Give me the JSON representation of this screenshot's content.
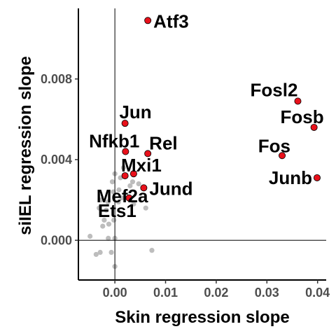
{
  "chart_data": {
    "type": "scatter",
    "xlabel": "Skin regression slope",
    "ylabel": "siIEL regression slope",
    "xlim": [
      -0.0072,
      0.0417
    ],
    "ylim": [
      -0.00197,
      0.0115
    ],
    "xticks": [
      0.0,
      0.01,
      0.02,
      0.03,
      0.04
    ],
    "xtick_labels": [
      "0.00",
      "0.01",
      "0.02",
      "0.03",
      "0.04"
    ],
    "yticks": [
      0.0,
      0.004,
      0.008
    ],
    "ytick_labels": [
      "0.000",
      "0.004",
      "0.008"
    ],
    "reference_lines": {
      "x": 0.0,
      "y": 0.0
    },
    "grid": false,
    "colors": {
      "highlight_fill": "#e8111b",
      "highlight_stroke": "#000000",
      "background_points": "#bdbdbd",
      "axis": "#000000"
    },
    "highlighted_points": [
      {
        "label": "Atf3",
        "x": 0.0065,
        "y": 0.0109
      },
      {
        "label": "Fosl2",
        "x": 0.0361,
        "y": 0.0069
      },
      {
        "label": "Jun",
        "x": 0.002,
        "y": 0.0058
      },
      {
        "label": "Fosb",
        "x": 0.0393,
        "y": 0.0056
      },
      {
        "label": "Nfkb1",
        "x": 0.0021,
        "y": 0.0044
      },
      {
        "label": "Rel",
        "x": 0.0065,
        "y": 0.0043
      },
      {
        "label": "Fos",
        "x": 0.033,
        "y": 0.0042
      },
      {
        "label": "Mxi1",
        "x": 0.0037,
        "y": 0.0033
      },
      {
        "label": "Mef2a",
        "x": 0.002,
        "y": 0.0032
      },
      {
        "label": "Junb",
        "x": 0.0399,
        "y": 0.0031
      },
      {
        "label": "Jund",
        "x": 0.0057,
        "y": 0.0026
      },
      {
        "label": "Ets1",
        "x": 0.0028,
        "y": 0.0021
      }
    ],
    "background_points": [
      {
        "x": 0.0,
        "y": 0.0033
      },
      {
        "x": -0.0005,
        "y": 0.0029
      },
      {
        "x": 0.0011,
        "y": 0.0031
      },
      {
        "x": 0.0017,
        "y": 0.0036
      },
      {
        "x": -0.0003,
        "y": 0.0024
      },
      {
        "x": 0.0008,
        "y": 0.0025
      },
      {
        "x": 0.0035,
        "y": 0.0029
      },
      {
        "x": 0.0047,
        "y": 0.0028
      },
      {
        "x": 0.003,
        "y": 0.0027
      },
      {
        "x": 0.0014,
        "y": 0.0021
      },
      {
        "x": -0.0028,
        "y": 0.002
      },
      {
        "x": -0.0014,
        "y": 0.0019
      },
      {
        "x": 0.0007,
        "y": 0.0019
      },
      {
        "x": 0.0037,
        "y": 0.0018
      },
      {
        "x": -0.0031,
        "y": 0.0016
      },
      {
        "x": 0.0061,
        "y": 0.0016
      },
      {
        "x": -0.0017,
        "y": 0.0015
      },
      {
        "x": -0.0021,
        "y": 0.001
      },
      {
        "x": -0.0002,
        "y": 0.001
      },
      {
        "x": -0.0012,
        "y": 0.0008
      },
      {
        "x": -0.0024,
        "y": 0.0007
      },
      {
        "x": -0.0049,
        "y": 0.0002
      },
      {
        "x": -0.0013,
        "y": 0.0001
      },
      {
        "x": 0.0,
        "y": 0.0001
      },
      {
        "x": -0.0029,
        "y": -0.0006
      },
      {
        "x": -0.0037,
        "y": -0.0007
      },
      {
        "x": -0.0007,
        "y": -0.0006
      },
      {
        "x": 0.0073,
        "y": -0.0005
      },
      {
        "x": 0.0,
        "y": -0.0013
      }
    ]
  }
}
